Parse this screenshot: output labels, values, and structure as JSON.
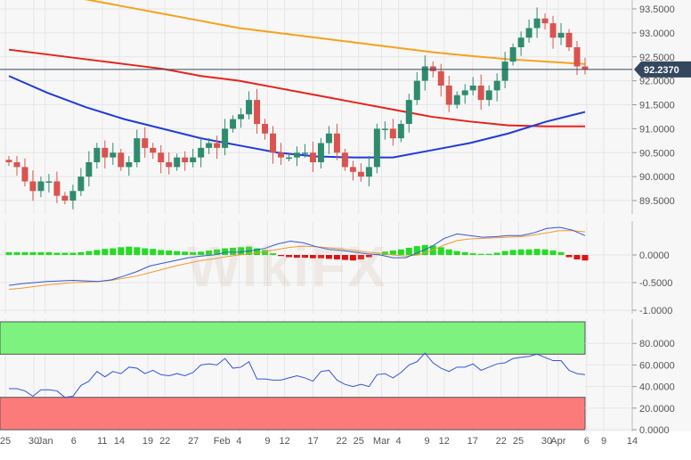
{
  "watermark": "WikiFX",
  "chart_data": [
    {
      "type": "candlestick",
      "panel": "price",
      "ylim": [
        89.25,
        93.7
      ],
      "yticks": [
        "93.5000",
        "93.0000",
        "92.5000",
        "92.0000",
        "91.5000",
        "91.0000",
        "90.5000",
        "90.0000",
        "89.5000"
      ],
      "current_price": "92.2370",
      "closes": [
        90.3,
        90.2,
        89.9,
        89.7,
        89.9,
        89.9,
        89.6,
        89.5,
        89.7,
        90.0,
        90.3,
        90.6,
        90.4,
        90.5,
        90.2,
        90.3,
        90.8,
        90.6,
        90.5,
        90.3,
        90.2,
        90.4,
        90.3,
        90.4,
        90.6,
        90.7,
        90.6,
        91.0,
        91.2,
        91.3,
        91.6,
        91.1,
        90.9,
        90.5,
        90.4,
        90.4,
        90.5,
        90.5,
        90.3,
        90.7,
        90.9,
        90.5,
        90.2,
        90.1,
        90.0,
        90.2,
        91.0,
        91.0,
        90.8,
        91.1,
        91.6,
        92.0,
        92.3,
        92.2,
        91.9,
        91.5,
        91.7,
        91.8,
        91.9,
        91.6,
        91.8,
        92.0,
        92.4,
        92.7,
        92.9,
        93.1,
        93.3,
        93.2,
        92.9,
        93.0,
        92.7,
        92.3,
        92.237
      ],
      "sma_100": [
        92.65,
        92.55,
        92.45,
        92.35,
        92.25,
        92.1,
        92.0,
        91.85,
        91.7,
        91.55,
        91.4,
        91.25,
        91.15,
        91.07,
        91.05,
        91.05
      ],
      "sma_200": [
        93.9,
        93.8,
        93.7,
        93.55,
        93.4,
        93.25,
        93.1,
        93.0,
        92.9,
        92.8,
        92.7,
        92.6,
        92.52,
        92.45,
        92.4,
        92.35
      ],
      "sma_55": [
        92.1,
        91.75,
        91.45,
        91.2,
        91.0,
        90.8,
        90.65,
        90.5,
        90.42,
        90.4,
        90.4,
        90.55,
        90.7,
        90.9,
        91.15,
        91.35
      ],
      "colors": {
        "up": "#2e8b6e",
        "down": "#d9534f",
        "sma_100": "#e8211b",
        "sma_200": "#f7a21b",
        "sma_55": "#1f3ae0",
        "price_line": "#34475e"
      }
    },
    {
      "type": "bar+line",
      "panel": "macd",
      "ylim": [
        -1.05,
        0.65
      ],
      "yticks": [
        "0.0000",
        "-0.5000",
        "-1.0000"
      ],
      "histogram": [
        0.05,
        0.05,
        0.05,
        0.05,
        0.05,
        0.05,
        0.04,
        0.04,
        0.04,
        0.05,
        0.07,
        0.09,
        0.11,
        0.12,
        0.14,
        0.15,
        0.14,
        0.12,
        0.11,
        0.09,
        0.08,
        0.07,
        0.06,
        0.05,
        0.06,
        0.08,
        0.1,
        0.12,
        0.13,
        0.14,
        0.15,
        0.12,
        0.09,
        0.03,
        -0.02,
        -0.04,
        -0.05,
        -0.05,
        -0.06,
        -0.06,
        -0.07,
        -0.08,
        -0.09,
        -0.1,
        -0.08,
        -0.04,
        0.02,
        0.06,
        0.08,
        0.1,
        0.13,
        0.16,
        0.18,
        0.17,
        0.14,
        0.1,
        0.07,
        0.05,
        0.03,
        0.02,
        0.02,
        0.04,
        0.07,
        0.09,
        0.1,
        0.1,
        0.11,
        0.1,
        0.08,
        0.05,
        -0.04,
        -0.08,
        -0.1
      ],
      "macd": [
        -0.55,
        -0.52,
        -0.5,
        -0.48,
        -0.47,
        -0.46,
        -0.47,
        -0.48,
        -0.45,
        -0.38,
        -0.3,
        -0.2,
        -0.15,
        -0.1,
        -0.05,
        -0.02,
        0.0,
        0.05,
        0.05,
        0.08,
        0.12,
        0.2,
        0.25,
        0.22,
        0.15,
        0.1,
        0.08,
        0.05,
        0.02,
        0.0,
        -0.05,
        -0.05,
        0.05,
        0.15,
        0.3,
        0.38,
        0.35,
        0.32,
        0.33,
        0.35,
        0.35,
        0.4,
        0.48,
        0.5,
        0.45,
        0.35
      ],
      "signal": [
        -0.62,
        -0.6,
        -0.57,
        -0.54,
        -0.52,
        -0.5,
        -0.49,
        -0.48,
        -0.46,
        -0.42,
        -0.38,
        -0.32,
        -0.26,
        -0.2,
        -0.15,
        -0.1,
        -0.07,
        -0.03,
        0.0,
        0.03,
        0.06,
        0.1,
        0.14,
        0.16,
        0.15,
        0.13,
        0.11,
        0.08,
        0.05,
        0.03,
        0.0,
        -0.02,
        0.0,
        0.08,
        0.18,
        0.26,
        0.29,
        0.3,
        0.31,
        0.32,
        0.33,
        0.36,
        0.4,
        0.44,
        0.44,
        0.42
      ],
      "colors": {
        "pos": "#22dd22",
        "neg": "#e31010",
        "macd": "#3355dd",
        "signal": "#f29a2e"
      }
    },
    {
      "type": "line",
      "panel": "rsi",
      "ylim": [
        0,
        100
      ],
      "yticks": [
        "80.0000",
        "60.0000",
        "40.0000",
        "20.0000",
        "0.0000"
      ],
      "overbought": 70,
      "oversold": 30,
      "values": [
        38,
        38,
        36,
        31,
        37,
        37,
        36,
        30,
        31,
        41,
        45,
        54,
        49,
        54,
        52,
        58,
        57,
        52,
        55,
        51,
        50,
        52,
        50,
        53,
        60,
        61,
        60,
        66,
        57,
        58,
        63,
        47,
        47,
        46,
        46,
        48,
        50,
        48,
        45,
        54,
        55,
        46,
        42,
        40,
        42,
        40,
        51,
        52,
        48,
        53,
        60,
        63,
        71,
        62,
        57,
        54,
        58,
        58,
        61,
        55,
        58,
        61,
        62,
        66,
        67,
        68,
        70,
        67,
        64,
        64,
        55,
        52,
        51
      ],
      "colors": {
        "line": "#3355dd",
        "overbought_band": "#7ef27e",
        "oversold_band": "#fb7b7b"
      }
    }
  ],
  "xaxis": {
    "ticks": [
      {
        "label": "25",
        "date": "2020-12-25"
      },
      {
        "label": "30",
        "date": "2020-12-30"
      },
      {
        "label": "Jan",
        "date": "2021-01-01"
      },
      {
        "label": "6",
        "date": "2021-01-06"
      },
      {
        "label": "11",
        "date": "2021-01-11"
      },
      {
        "label": "14",
        "date": "2021-01-14"
      },
      {
        "label": "19",
        "date": "2021-01-19"
      },
      {
        "label": "22",
        "date": "2021-01-22"
      },
      {
        "label": "27",
        "date": "2021-01-27"
      },
      {
        "label": "Feb",
        "date": "2021-02-01"
      },
      {
        "label": "4",
        "date": "2021-02-04"
      },
      {
        "label": "9",
        "date": "2021-02-09"
      },
      {
        "label": "12",
        "date": "2021-02-12"
      },
      {
        "label": "17",
        "date": "2021-02-17"
      },
      {
        "label": "22",
        "date": "2021-02-22"
      },
      {
        "label": "25",
        "date": "2021-02-25"
      },
      {
        "label": "Mar",
        "date": "2021-03-01"
      },
      {
        "label": "4",
        "date": "2021-03-04"
      },
      {
        "label": "9",
        "date": "2021-03-09"
      },
      {
        "label": "12",
        "date": "2021-03-12"
      },
      {
        "label": "17",
        "date": "2021-03-17"
      },
      {
        "label": "22",
        "date": "2021-03-22"
      },
      {
        "label": "25",
        "date": "2021-03-25"
      },
      {
        "label": "30",
        "date": "2021-03-30"
      },
      {
        "label": "Apr",
        "date": "2021-04-01"
      },
      {
        "label": "6",
        "date": "2021-04-06"
      },
      {
        "label": "9",
        "date": "2021-04-09"
      },
      {
        "label": "14",
        "date": "2021-04-14"
      }
    ]
  }
}
